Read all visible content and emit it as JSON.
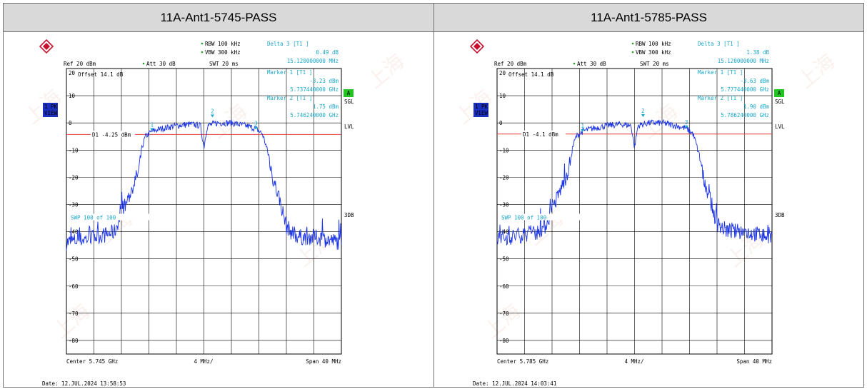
{
  "colors": {
    "header_bg": "#d9d9d9",
    "trace": "#1a33e6",
    "display_line": "#e04040",
    "marker": "#1aa6c8",
    "badge": "#22c422",
    "sidebar": "#1b2fbf"
  },
  "panels": [
    {
      "header": "11A-Ant1-5745-PASS",
      "rbw": "RBW 100 kHz",
      "vbw": "VBW 300 kHz",
      "att": "Att  30 dB",
      "swt": "SWT 20 ms",
      "ref": "Ref  20 dBm",
      "offset": "Offset  14.1 dB",
      "delta_title": "Delta 3 [T1 ]",
      "delta_val": "0.49 dB",
      "delta_freq": "15.120000000 MHz",
      "m1_title": "Marker 1 [T1 ]",
      "m1_val": "-3.23 dBm",
      "m1_freq": "5.737440000 GHz",
      "m2_title": "Marker 2 [T1 ]",
      "m2_val": "1.75 dBm",
      "m2_freq": "5.746240000 GHz",
      "d1": "D1 -4.25 dBm",
      "swp": "SWP  100 of  100",
      "center": "Center  5.745 GHz",
      "div": "4 MHz/",
      "span": "Span  40 MHz",
      "date": "Date: 12.JUL.2024  13:58:53",
      "badge_a": "A",
      "sgl": "SGL",
      "lvl": "LVL",
      "db3": "3DB",
      "side1": "1 PK",
      "side2": "VIEW"
    },
    {
      "header": "11A-Ant1-5785-PASS",
      "rbw": "RBW 100 kHz",
      "vbw": "VBW 300 kHz",
      "att": "Att  30 dB",
      "swt": "SWT 20 ms",
      "ref": "Ref  20 dBm",
      "offset": "Offset  14.1 dB",
      "delta_title": "Delta 3 [T1 ]",
      "delta_val": "1.38 dB",
      "delta_freq": "15.120000000 MHz",
      "m1_title": "Marker 1 [T1 ]",
      "m1_val": "-3.63 dBm",
      "m1_freq": "5.777440000 GHz",
      "m2_title": "Marker 2 [T1 ]",
      "m2_val": "1.90 dBm",
      "m2_freq": "5.786240000 GHz",
      "d1": "D1 -4.1 dBm",
      "swp": "SWP  100 of  100",
      "center": "Center  5.785 GHz",
      "div": "4 MHz/",
      "span": "Span  40 MHz",
      "date": "Date: 12.JUL.2024  14:03:41",
      "badge_a": "A",
      "sgl": "SGL",
      "lvl": "LVL",
      "db3": "3DB",
      "side1": "1 PK",
      "side2": "VIEW"
    }
  ],
  "chart_data": [
    {
      "type": "line",
      "xlabel": "",
      "ylabel": "",
      "x_range_ghz": [
        5.725,
        5.765
      ],
      "ylim": [
        -85,
        20
      ],
      "y_ticks": [
        20,
        10,
        0,
        -10,
        -20,
        -30,
        -40,
        -50,
        -60,
        -70,
        -80
      ],
      "grid": true,
      "display_line_dbm": -4.25,
      "markers": [
        {
          "label": "1",
          "x_ghz": 5.73744,
          "y_dbm": -3.23
        },
        {
          "label": "2",
          "x_ghz": 5.74624,
          "y_dbm": 1.75
        },
        {
          "label": "3",
          "x_ghz": 5.75256,
          "y_dbm": -2.74
        }
      ],
      "series": [
        {
          "x_ghz": [
            5.725,
            5.727,
            5.729,
            5.731,
            5.732,
            5.733,
            5.734,
            5.735,
            5.7355,
            5.736,
            5.7365,
            5.737,
            5.7375,
            5.739,
            5.741,
            5.743,
            5.7445,
            5.745,
            5.7455,
            5.747,
            5.749,
            5.751,
            5.7525,
            5.7535,
            5.754,
            5.7545,
            5.755,
            5.756,
            5.7565,
            5.757,
            5.758,
            5.759,
            5.761,
            5.763,
            5.765
          ],
          "y_dbm": [
            -44,
            -43,
            -42,
            -41,
            -40,
            -33,
            -28,
            -21,
            -18,
            -9,
            -5,
            -4,
            -3,
            -2,
            -1,
            -0.5,
            -1,
            -9,
            -1,
            0,
            0,
            -1,
            -2,
            -4,
            -8,
            -13,
            -20,
            -28,
            -33,
            -38,
            -41,
            -42,
            -42,
            -43,
            -44
          ]
        }
      ]
    },
    {
      "type": "line",
      "xlabel": "",
      "ylabel": "",
      "x_range_ghz": [
        5.765,
        5.805
      ],
      "ylim": [
        -85,
        20
      ],
      "y_ticks": [
        20,
        10,
        0,
        -10,
        -20,
        -30,
        -40,
        -50,
        -60,
        -70,
        -80
      ],
      "grid": true,
      "display_line_dbm": -4.1,
      "markers": [
        {
          "label": "1",
          "x_ghz": 5.77744,
          "y_dbm": -3.63
        },
        {
          "label": "2",
          "x_ghz": 5.78624,
          "y_dbm": 1.9
        },
        {
          "label": "3",
          "x_ghz": 5.79256,
          "y_dbm": -2.25
        }
      ],
      "series": [
        {
          "x_ghz": [
            5.765,
            5.767,
            5.769,
            5.771,
            5.772,
            5.773,
            5.774,
            5.775,
            5.7755,
            5.776,
            5.7765,
            5.777,
            5.7775,
            5.779,
            5.781,
            5.783,
            5.7845,
            5.785,
            5.7855,
            5.787,
            5.789,
            5.791,
            5.7925,
            5.7935,
            5.794,
            5.7945,
            5.795,
            5.796,
            5.7965,
            5.797,
            5.798,
            5.799,
            5.801,
            5.803,
            5.805
          ],
          "y_dbm": [
            -42,
            -42,
            -41,
            -40,
            -38,
            -32,
            -26,
            -20,
            -16,
            -9,
            -5,
            -4,
            -3,
            -2,
            -1,
            -0.5,
            -1,
            -9,
            -1,
            0,
            0,
            -1,
            -2,
            -4,
            -8,
            -13,
            -20,
            -28,
            -33,
            -37,
            -39,
            -40,
            -40,
            -41,
            -42
          ]
        }
      ]
    }
  ]
}
